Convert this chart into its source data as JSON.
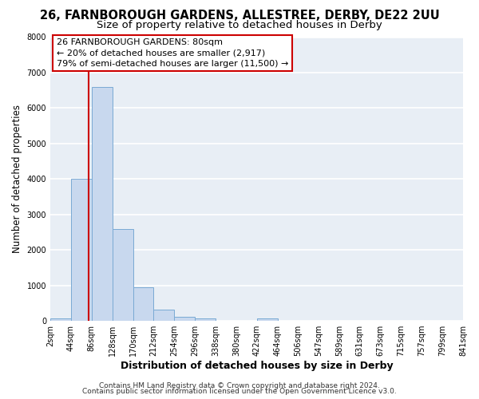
{
  "title": "26, FARNBOROUGH GARDENS, ALLESTREE, DERBY, DE22 2UU",
  "subtitle": "Size of property relative to detached houses in Derby",
  "xlabel": "Distribution of detached houses by size in Derby",
  "ylabel": "Number of detached properties",
  "bar_edges": [
    2,
    44,
    86,
    128,
    170,
    212,
    254,
    296,
    338,
    380,
    422,
    464,
    506,
    547,
    589,
    631,
    673,
    715,
    757,
    799,
    841
  ],
  "bar_heights": [
    70,
    4000,
    6600,
    2600,
    950,
    320,
    120,
    80,
    0,
    0,
    70,
    0,
    0,
    0,
    0,
    0,
    0,
    0,
    0,
    0
  ],
  "bar_color": "#c8d8ee",
  "bar_edgecolor": "#7aaad4",
  "vline_x": 80,
  "vline_color": "#cc0000",
  "annotation_lines": [
    "26 FARNBOROUGH GARDENS: 80sqm",
    "← 20% of detached houses are smaller (2,917)",
    "79% of semi-detached houses are larger (11,500) →"
  ],
  "ylim": [
    0,
    8000
  ],
  "yticks": [
    0,
    1000,
    2000,
    3000,
    4000,
    5000,
    6000,
    7000,
    8000
  ],
  "tick_labels": [
    "2sqm",
    "44sqm",
    "86sqm",
    "128sqm",
    "170sqm",
    "212sqm",
    "254sqm",
    "296sqm",
    "338sqm",
    "380sqm",
    "422sqm",
    "464sqm",
    "506sqm",
    "547sqm",
    "589sqm",
    "631sqm",
    "673sqm",
    "715sqm",
    "757sqm",
    "799sqm",
    "841sqm"
  ],
  "footer_line1": "Contains HM Land Registry data © Crown copyright and database right 2024.",
  "footer_line2": "Contains public sector information licensed under the Open Government Licence v3.0.",
  "bg_color": "#ffffff",
  "plot_bg_color": "#e8eef5",
  "grid_color": "#ffffff",
  "title_fontsize": 10.5,
  "subtitle_fontsize": 9.5,
  "xlabel_fontsize": 9,
  "ylabel_fontsize": 8.5,
  "tick_fontsize": 7,
  "annotation_fontsize": 8,
  "footer_fontsize": 6.5
}
